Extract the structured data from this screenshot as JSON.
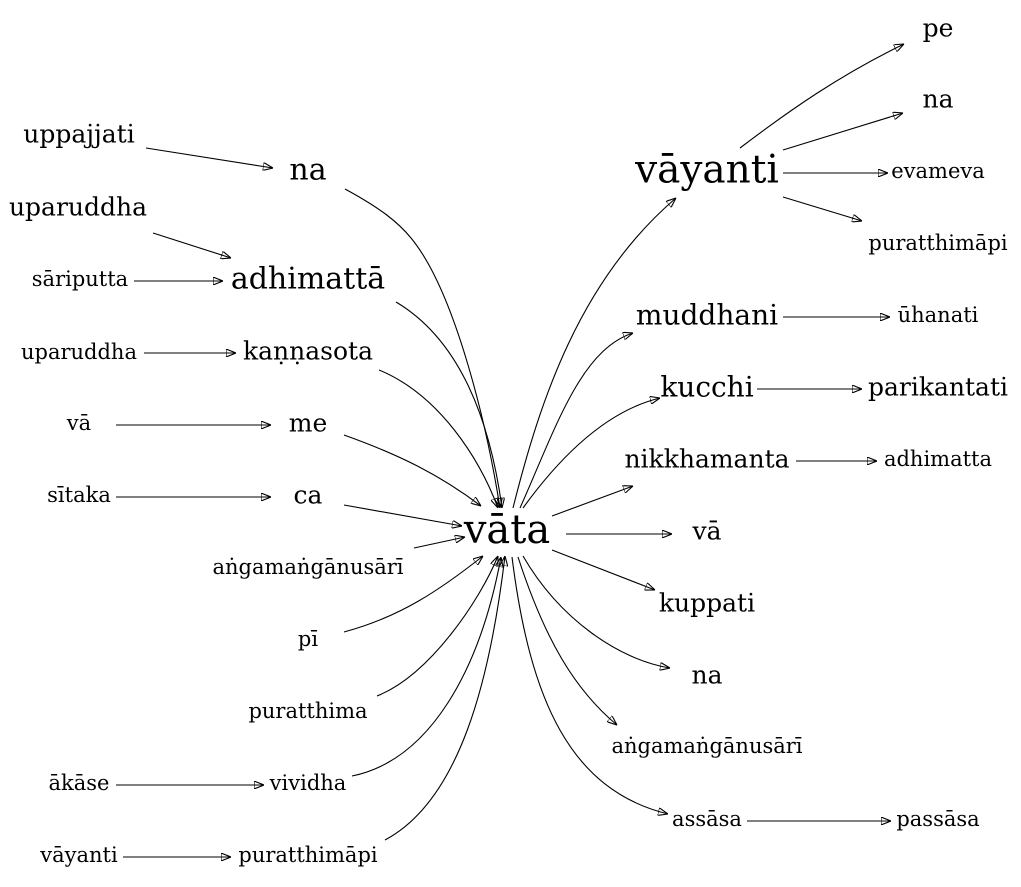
{
  "graph": {
    "center": "vāta",
    "colors": {
      "ink": "#000000",
      "background": "#ffffff"
    },
    "nodes": {
      "vata": "vāta",
      "na_l": "na",
      "uppajjati": "uppajjati",
      "adhimatta_l": "adhimattā",
      "uparuddha_1": "uparuddha",
      "sariputta": "sāriputta",
      "kannasota": "kaṇṇasota",
      "uparuddha_2": "uparuddha",
      "me": "me",
      "va_l": "vā",
      "ca": "ca",
      "sitaka": "sītaka",
      "angama_l": "aṅgamaṅgānusārī",
      "pi": "pī",
      "puratthima": "puratthima",
      "vividha": "vividha",
      "akase": "ākāse",
      "puratthimapi_l": "puratthimāpi",
      "vayanti_l": "vāyanti",
      "vayanti_r": "vāyanti",
      "pe": "pe",
      "na_r1": "na",
      "evameva": "evameva",
      "puratthimapi_r": "puratthimāpi",
      "muddhani": "muddhani",
      "uhanati": "ūhanati",
      "kucchi": "kucchi",
      "parikantati": "parikantati",
      "nikkhamanta": "nikkhamanta",
      "adhimatta_r": "adhimatta",
      "va_r": "vā",
      "kuppati": "kuppati",
      "na_r2": "na",
      "angama_r": "aṅgamaṅgānusārī",
      "assasa": "assāsa",
      "passasa": "passāsa"
    },
    "edges": [
      [
        "uppajjati",
        "na_l"
      ],
      [
        "uparuddha_1",
        "adhimatta_l"
      ],
      [
        "sariputta",
        "adhimatta_l"
      ],
      [
        "uparuddha_2",
        "kannasota"
      ],
      [
        "va_l",
        "me"
      ],
      [
        "sitaka",
        "ca"
      ],
      [
        "akase",
        "vividha"
      ],
      [
        "vayanti_l",
        "puratthimapi_l"
      ],
      [
        "na_l",
        "vata"
      ],
      [
        "adhimatta_l",
        "vata"
      ],
      [
        "kannasota",
        "vata"
      ],
      [
        "me",
        "vata"
      ],
      [
        "ca",
        "vata"
      ],
      [
        "angama_l",
        "vata"
      ],
      [
        "pi",
        "vata"
      ],
      [
        "puratthima",
        "vata"
      ],
      [
        "vividha",
        "vata"
      ],
      [
        "puratthimapi_l",
        "vata"
      ],
      [
        "vata",
        "vayanti_r"
      ],
      [
        "vata",
        "muddhani"
      ],
      [
        "vata",
        "kucchi"
      ],
      [
        "vata",
        "nikkhamanta"
      ],
      [
        "vata",
        "va_r"
      ],
      [
        "vata",
        "kuppati"
      ],
      [
        "vata",
        "na_r2"
      ],
      [
        "vata",
        "angama_r"
      ],
      [
        "vata",
        "assasa"
      ],
      [
        "vayanti_r",
        "pe"
      ],
      [
        "vayanti_r",
        "na_r1"
      ],
      [
        "vayanti_r",
        "evameva"
      ],
      [
        "vayanti_r",
        "puratthimapi_r"
      ],
      [
        "muddhani",
        "uhanati"
      ],
      [
        "kucchi",
        "parikantati"
      ],
      [
        "nikkhamanta",
        "adhimatta_r"
      ],
      [
        "assasa",
        "passasa"
      ]
    ]
  }
}
